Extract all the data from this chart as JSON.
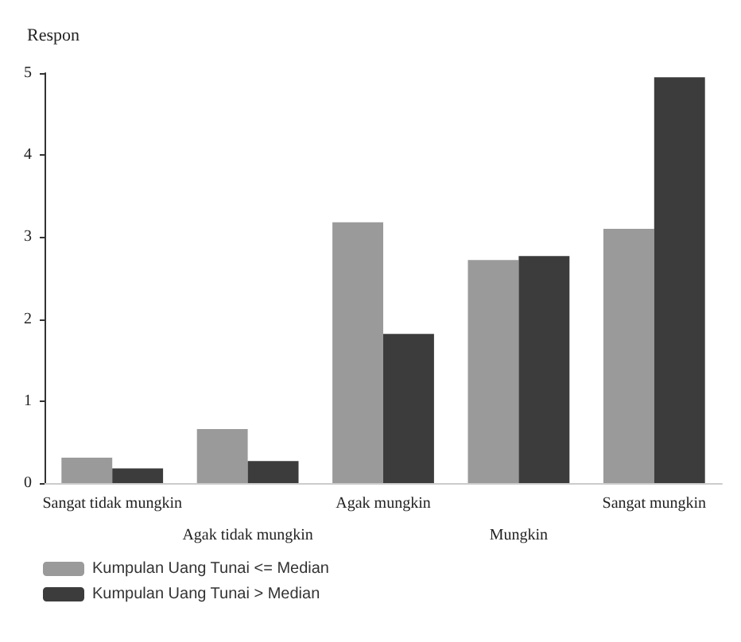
{
  "chart_data": {
    "type": "bar",
    "ylabel": "Respon",
    "categories": [
      "Sangat tidak mungkin",
      "Agak tidak mungkin",
      "Agak mungkin",
      "Mungkin",
      "Sangat mungkin"
    ],
    "series": [
      {
        "name": "Kumpulan Uang Tunai <= Median",
        "color": "#9a9a9a",
        "values": [
          0.31,
          0.66,
          3.18,
          2.72,
          3.1
        ]
      },
      {
        "name": "Kumpulan Uang Tunai > Median",
        "color": "#3c3c3c",
        "values": [
          0.18,
          0.27,
          1.82,
          2.77,
          4.95
        ]
      }
    ],
    "ylim": [
      0,
      5
    ],
    "yticks": [
      0,
      1,
      2,
      3,
      4,
      5
    ],
    "grid": false,
    "legend": "bottom left"
  }
}
